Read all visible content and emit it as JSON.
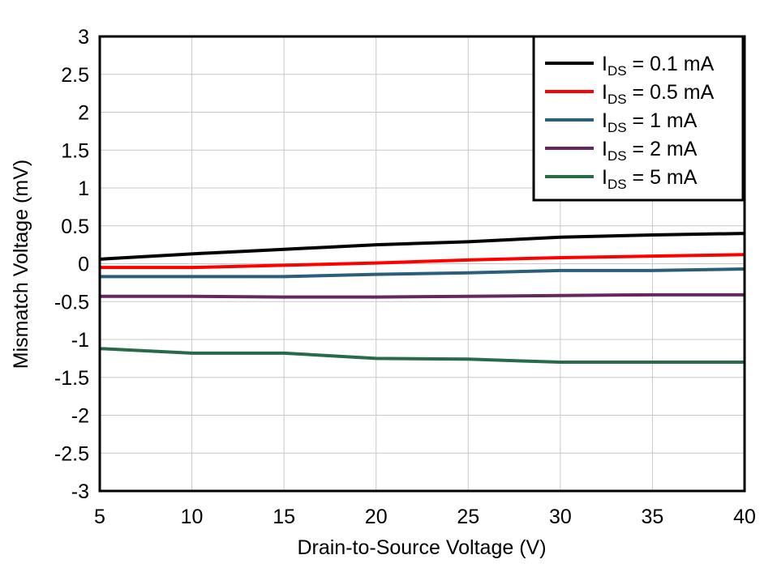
{
  "chart_data": {
    "type": "line",
    "title": "",
    "xlabel": "Drain-to-Source Voltage (V)",
    "ylabel": "Mismatch Voltage (mV)",
    "xlim": [
      5,
      40
    ],
    "ylim": [
      -3,
      3
    ],
    "xticks": [
      5,
      10,
      15,
      20,
      25,
      30,
      35,
      40
    ],
    "yticks": [
      3,
      2.5,
      2,
      1.5,
      1,
      0.5,
      0,
      -0.5,
      -1,
      -1.5,
      -2,
      -2.5,
      -3
    ],
    "grid": true,
    "legend_placement": "top-right",
    "x": [
      5,
      10,
      15,
      20,
      25,
      30,
      35,
      40
    ],
    "series": [
      {
        "name": "IDS = 0.1 mA",
        "label_main": "I",
        "label_sub": "DS",
        "label_rest": " = 0.1 mA",
        "color": "#000000",
        "values": [
          0.06,
          0.13,
          0.19,
          0.25,
          0.29,
          0.35,
          0.38,
          0.4
        ]
      },
      {
        "name": "IDS = 0.5 mA",
        "label_main": "I",
        "label_sub": "DS",
        "label_rest": " = 0.5 mA",
        "color": "#ff0000",
        "values": [
          -0.05,
          -0.05,
          -0.02,
          0.01,
          0.05,
          0.08,
          0.1,
          0.12
        ]
      },
      {
        "name": "IDS = 1 mA",
        "label_main": "I",
        "label_sub": "DS",
        "label_rest": " = 1 mA",
        "color": "#2a5f7a",
        "values": [
          -0.17,
          -0.17,
          -0.17,
          -0.14,
          -0.12,
          -0.09,
          -0.09,
          -0.07
        ]
      },
      {
        "name": "IDS = 2 mA",
        "label_main": "I",
        "label_sub": "DS",
        "label_rest": " = 2 mA",
        "color": "#66275f",
        "values": [
          -0.43,
          -0.43,
          -0.44,
          -0.44,
          -0.43,
          -0.42,
          -0.41,
          -0.41
        ]
      },
      {
        "name": "IDS = 5 mA",
        "label_main": "I",
        "label_sub": "DS",
        "label_rest": " = 5 mA",
        "color": "#276b48",
        "values": [
          -1.12,
          -1.18,
          -1.18,
          -1.25,
          -1.26,
          -1.3,
          -1.3,
          -1.3
        ]
      }
    ]
  }
}
